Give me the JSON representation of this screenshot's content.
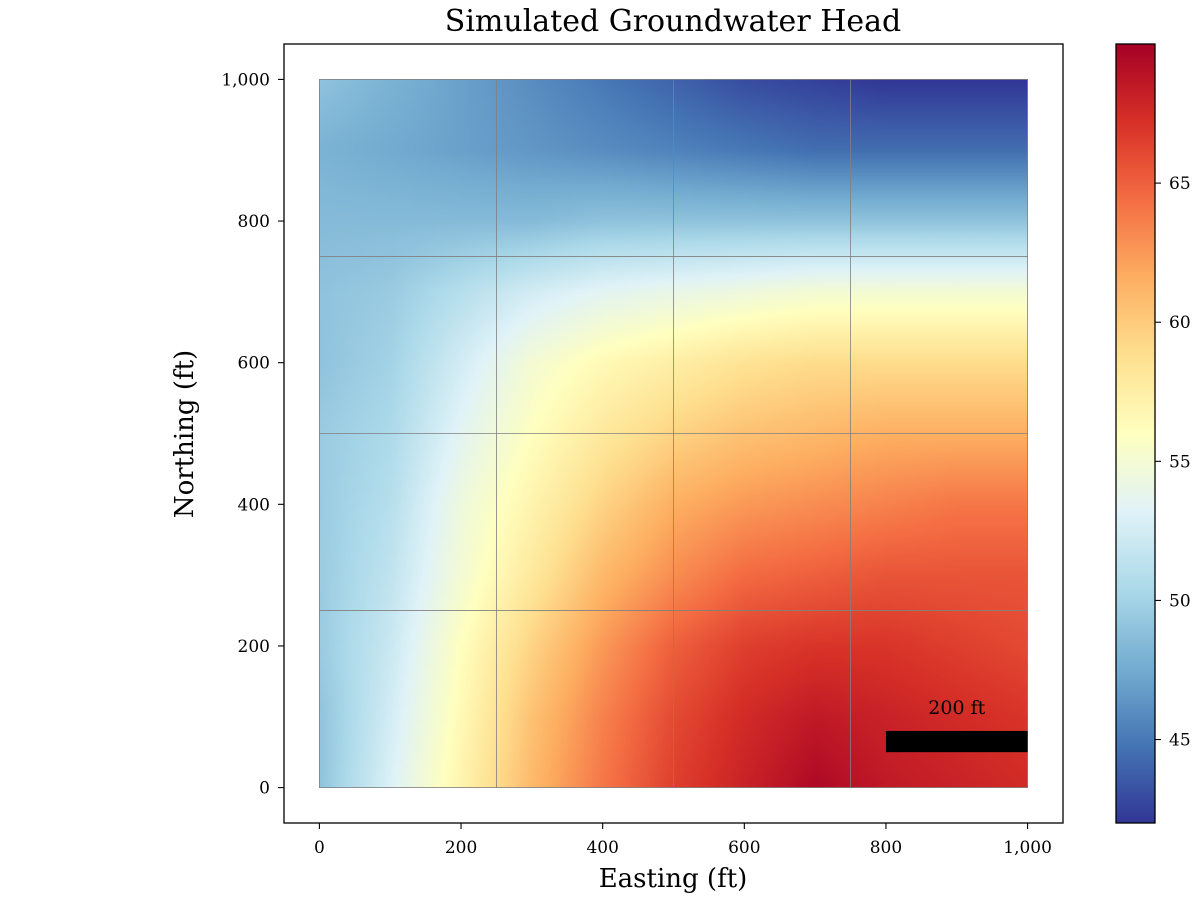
{
  "chart_data": {
    "type": "heatmap",
    "title": "Simulated Groundwater Head",
    "xlabel": "Easting (ft)",
    "ylabel": "Northing (ft)",
    "xlim": [
      -50,
      1050
    ],
    "ylim": [
      -50,
      1050
    ],
    "extent": {
      "x": [
        0,
        1000
      ],
      "y": [
        0,
        1000
      ]
    },
    "x_ticks": [
      0,
      200,
      400,
      600,
      800,
      1000
    ],
    "y_ticks": [
      0,
      200,
      400,
      600,
      800,
      1000
    ],
    "x_tick_labels": [
      "0",
      "200",
      "400",
      "600",
      "800",
      "1,000"
    ],
    "y_tick_labels": [
      "0",
      "200",
      "400",
      "600",
      "800",
      "1,000"
    ],
    "grid": true,
    "grid_lines": {
      "x": [
        250,
        500,
        750
      ],
      "y": [
        250,
        500,
        750
      ]
    },
    "colormap": "RdYlBu_r",
    "colormap_stops": [
      "#313695",
      "#4575b4",
      "#74add1",
      "#abd9e9",
      "#e0f3f8",
      "#ffffbf",
      "#fee090",
      "#fdae61",
      "#f46d43",
      "#d73027",
      "#a50026"
    ],
    "colorbar": {
      "range": [
        42,
        70
      ],
      "ticks": [
        45,
        50,
        55,
        60,
        65
      ],
      "tick_labels": [
        "45",
        "50",
        "55",
        "60",
        "65"
      ]
    },
    "head_field": {
      "x": [
        0,
        100,
        200,
        300,
        400,
        500,
        600,
        700,
        800,
        900,
        1000
      ],
      "y": [
        0,
        100,
        200,
        300,
        400,
        500,
        600,
        700,
        800,
        900,
        1000
      ],
      "values": [
        [
          49.0,
          53.0,
          57.0,
          61.0,
          64.0,
          66.5,
          68.0,
          69.5,
          68.5,
          68.0,
          67.5
        ],
        [
          49.0,
          52.5,
          56.5,
          60.5,
          63.5,
          66.0,
          67.5,
          68.5,
          68.0,
          67.5,
          67.0
        ],
        [
          49.5,
          52.0,
          56.0,
          59.5,
          62.5,
          65.0,
          66.5,
          67.0,
          67.0,
          66.5,
          66.0
        ],
        [
          49.5,
          51.5,
          55.0,
          58.0,
          61.0,
          63.0,
          64.5,
          65.0,
          65.5,
          65.5,
          65.5
        ],
        [
          49.5,
          51.0,
          54.5,
          57.0,
          59.5,
          61.5,
          62.5,
          63.0,
          63.5,
          64.0,
          64.0
        ],
        [
          49.5,
          50.5,
          53.5,
          56.0,
          58.0,
          59.5,
          60.5,
          61.0,
          61.5,
          61.5,
          61.5
        ],
        [
          49.0,
          50.0,
          52.5,
          55.0,
          56.5,
          57.5,
          58.5,
          59.0,
          59.0,
          59.0,
          59.0
        ],
        [
          49.0,
          49.5,
          51.0,
          52.5,
          53.5,
          54.0,
          54.5,
          55.0,
          55.0,
          55.0,
          55.0
        ],
        [
          48.5,
          48.5,
          48.5,
          48.5,
          49.0,
          49.0,
          49.0,
          49.0,
          49.0,
          49.0,
          49.0
        ],
        [
          48.0,
          47.5,
          47.0,
          46.5,
          46.0,
          45.5,
          45.0,
          44.5,
          44.5,
          44.5,
          44.5
        ],
        [
          49.0,
          48.0,
          47.0,
          46.0,
          45.0,
          44.0,
          43.0,
          42.5,
          42.0,
          42.0,
          42.0
        ]
      ]
    },
    "scale_bar": {
      "label": "200 ft",
      "x_start": 800,
      "x_end": 1000,
      "y_bottom": 50,
      "y_top": 80,
      "color": "#000000"
    }
  }
}
